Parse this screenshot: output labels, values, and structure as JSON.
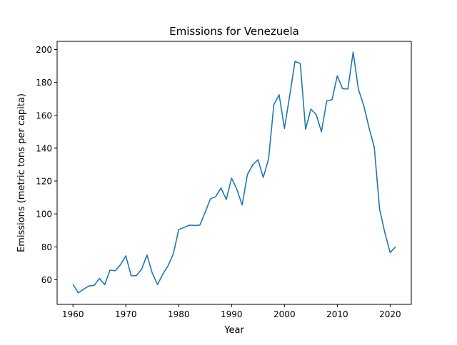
{
  "chart_data": {
    "type": "line",
    "title": "Emissions for Venezuela",
    "xlabel": "Year",
    "ylabel": "Emissions (metric tons per capita)",
    "xlim": [
      1957,
      2024
    ],
    "ylim": [
      45,
      205
    ],
    "xticks": [
      1960,
      1970,
      1980,
      1990,
      2000,
      2010,
      2020
    ],
    "yticks": [
      60,
      80,
      100,
      120,
      140,
      160,
      180,
      200
    ],
    "grid": false,
    "legend": "none",
    "line_color": "#1f77b4",
    "series": [
      {
        "x": [
          1960,
          1961,
          1962,
          1963,
          1964,
          1965,
          1966,
          1967,
          1968,
          1969,
          1970,
          1971,
          1972,
          1973,
          1974,
          1975,
          1976,
          1977,
          1978,
          1979,
          1980,
          1981,
          1982,
          1983,
          1984,
          1985,
          1986,
          1987,
          1988,
          1989,
          1990,
          1991,
          1992,
          1993,
          1994,
          1995,
          1996,
          1997,
          1998,
          1999,
          2000,
          2001,
          2002,
          2003,
          2004,
          2005,
          2006,
          2007,
          2008,
          2009,
          2010,
          2011,
          2012,
          2013,
          2014,
          2015,
          2016,
          2017,
          2018,
          2019,
          2020,
          2021
        ],
        "values": [
          57.2,
          52.0,
          54.2,
          56.2,
          56.5,
          60.8,
          57.0,
          65.8,
          65.5,
          69.2,
          74.5,
          62.5,
          62.5,
          66.5,
          75.0,
          64.0,
          57.0,
          63.5,
          68.5,
          76.0,
          90.5,
          91.8,
          93.2,
          93.0,
          93.2,
          101.0,
          109.2,
          110.5,
          115.8,
          108.8,
          121.8,
          115.0,
          105.5,
          124.0,
          129.8,
          133.0,
          122.2,
          133.5,
          166.5,
          172.5,
          152.0,
          172.0,
          192.8,
          191.5,
          151.5,
          163.8,
          160.5,
          150.0,
          168.8,
          169.5,
          184.0,
          176.2,
          176.0,
          198.5,
          175.8,
          166.0,
          152.5,
          140.5,
          103.0,
          88.5,
          76.5,
          80.0
        ]
      }
    ]
  }
}
